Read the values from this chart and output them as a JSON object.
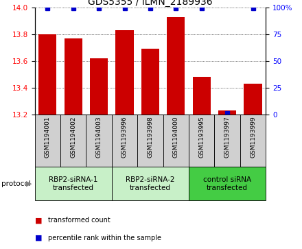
{
  "title": "GDS5355 / ILMN_2189936",
  "samples": [
    "GSM1194001",
    "GSM1194002",
    "GSM1194003",
    "GSM1193996",
    "GSM1193998",
    "GSM1194000",
    "GSM1193995",
    "GSM1193997",
    "GSM1193999"
  ],
  "bar_values": [
    13.8,
    13.77,
    13.62,
    13.83,
    13.69,
    13.93,
    13.48,
    13.23,
    13.43
  ],
  "bar_color": "#cc0000",
  "percentile_values": [
    99,
    99,
    99,
    99,
    99,
    99,
    99,
    1,
    99
  ],
  "percentile_color": "#0000cc",
  "ylim_left": [
    13.2,
    14.0
  ],
  "ylim_right": [
    0,
    100
  ],
  "yticks_left": [
    13.2,
    13.4,
    13.6,
    13.8,
    14.0
  ],
  "yticks_right": [
    0,
    25,
    50,
    75,
    100
  ],
  "ytick_labels_right": [
    "0",
    "25",
    "50",
    "75",
    "100%"
  ],
  "groups": [
    {
      "label": "RBP2-siRNA-1\ntransfected",
      "indices": [
        0,
        1,
        2
      ],
      "color": "#c8f0c8"
    },
    {
      "label": "RBP2-siRNA-2\ntransfected",
      "indices": [
        3,
        4,
        5
      ],
      "color": "#c8f0c8"
    },
    {
      "label": "control siRNA\ntransfected",
      "indices": [
        6,
        7,
        8
      ],
      "color": "#44cc44"
    }
  ],
  "protocol_label": "protocol",
  "legend_items": [
    {
      "label": "transformed count",
      "color": "#cc0000"
    },
    {
      "label": "percentile rank within the sample",
      "color": "#0000cc"
    }
  ],
  "bar_width": 0.7,
  "bg_color_sample_row": "#d0d0d0",
  "title_fontsize": 10,
  "tick_fontsize": 7.5,
  "sample_fontsize": 6.5,
  "proto_fontsize": 7.5,
  "legend_fontsize": 7
}
